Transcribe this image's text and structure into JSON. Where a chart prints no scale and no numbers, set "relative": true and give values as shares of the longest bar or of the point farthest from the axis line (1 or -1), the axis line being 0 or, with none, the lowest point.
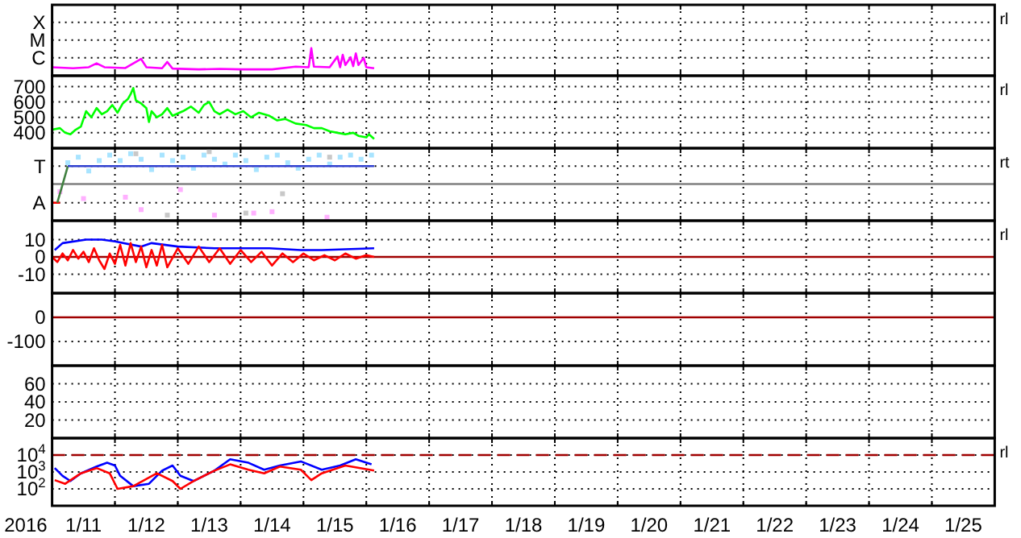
{
  "chart_data": [
    {
      "type": "line",
      "relative": true,
      "grid": "x",
      "tick_labels": false,
      "ref_lines": [
        {
          "axis": "y",
          "value": 0.65,
          "label": "C",
          "color": "#000000",
          "line_style": "dotted"
        },
        {
          "axis": "y",
          "value": 1.3,
          "label": "M",
          "color": "#000000",
          "line_style": "dotted"
        },
        {
          "axis": "y",
          "value": 1.94,
          "label": "X",
          "color": "#000000",
          "line_style": "dotted"
        }
      ],
      "xlim": [
        "2016-01-11",
        "2016-01-26"
      ],
      "xticks": [
        {
          "value": "2016-01-12",
          "label": null
        },
        {
          "value": "2016-01-13",
          "label": null
        },
        {
          "value": "2016-01-14",
          "label": null
        },
        {
          "value": "2016-01-15",
          "label": null
        },
        {
          "value": "2016-01-16",
          "label": null
        },
        {
          "value": "2016-01-17",
          "label": null
        },
        {
          "value": "2016-01-18",
          "label": null
        },
        {
          "value": "2016-01-19",
          "label": null
        },
        {
          "value": "2016-01-20",
          "label": null
        },
        {
          "value": "2016-01-21",
          "label": null
        },
        {
          "value": "2016-01-22",
          "label": null
        },
        {
          "value": "2016-01-23",
          "label": null
        },
        {
          "value": "2016-01-24",
          "label": null
        },
        {
          "value": "2016-01-25",
          "label": null
        }
      ],
      "annotations": [
        "rl"
      ],
      "series": [
        {
          "color": "#ff00ff",
          "x": [
            "2016-01-11T00:00",
            "2016-01-11T08:00",
            "2016-01-11T14:00",
            "2016-01-11T17:00",
            "2016-01-11T20:00",
            "2016-01-12T04:00",
            "2016-01-12T10:00",
            "2016-01-12T12:00",
            "2016-01-12T18:00",
            "2016-01-12T20:00",
            "2016-01-12T22:00",
            "2016-01-13T08:00",
            "2016-01-13T16:00",
            "2016-01-14T00:00",
            "2016-01-14T12:00",
            "2016-01-14T21:00",
            "2016-01-15T02:00",
            "2016-01-15T03:00",
            "2016-01-15T04:00",
            "2016-01-15T10:00",
            "2016-01-15T13:00",
            "2016-01-15T14:00",
            "2016-01-15T15:00",
            "2016-01-15T16:00",
            "2016-01-15T18:00",
            "2016-01-15T19:00",
            "2016-01-15T20:00",
            "2016-01-15T21:00",
            "2016-01-15T23:00",
            "2016-01-16T00:00",
            "2016-01-16T03:00"
          ],
          "values": [
            0.31,
            0.27,
            0.31,
            0.45,
            0.31,
            0.28,
            0.61,
            0.31,
            0.27,
            0.5,
            0.26,
            0.23,
            0.25,
            0.23,
            0.23,
            0.33,
            0.31,
            1,
            0.33,
            0.31,
            0.7,
            0.31,
            0.76,
            0.39,
            0.67,
            0.35,
            0.81,
            0.39,
            0.65,
            0.31,
            0.27
          ]
        }
      ]
    },
    {
      "type": "line",
      "grid": true,
      "tick_labels": "y",
      "ylim": [
        300,
        770
      ],
      "yticks": [
        400,
        500,
        600,
        700
      ],
      "xlim": [
        "2016-01-11",
        "2016-01-26"
      ],
      "xticks": [
        {
          "value": "2016-01-12",
          "label": null
        },
        {
          "value": "2016-01-13",
          "label": null
        },
        {
          "value": "2016-01-14",
          "label": null
        },
        {
          "value": "2016-01-15",
          "label": null
        },
        {
          "value": "2016-01-16",
          "label": null
        },
        {
          "value": "2016-01-17",
          "label": null
        },
        {
          "value": "2016-01-18",
          "label": null
        },
        {
          "value": "2016-01-19",
          "label": null
        },
        {
          "value": "2016-01-20",
          "label": null
        },
        {
          "value": "2016-01-21",
          "label": null
        },
        {
          "value": "2016-01-22",
          "label": null
        },
        {
          "value": "2016-01-23",
          "label": null
        },
        {
          "value": "2016-01-24",
          "label": null
        },
        {
          "value": "2016-01-25",
          "label": null
        }
      ],
      "annotations": [
        "rl"
      ],
      "series": [
        {
          "color": "#00ff00",
          "x": [
            "2016-01-11T00:00",
            "2016-01-11T03:00",
            "2016-01-11T05:00",
            "2016-01-11T07:00",
            "2016-01-11T09:00",
            "2016-01-11T11:00",
            "2016-01-11T13:00",
            "2016-01-11T15:00",
            "2016-01-11T17:00",
            "2016-01-11T19:00",
            "2016-01-11T21:00",
            "2016-01-11T23:00",
            "2016-01-12T01:00",
            "2016-01-12T03:00",
            "2016-01-12T05:00",
            "2016-01-12T06:00",
            "2016-01-12T07:00",
            "2016-01-12T08:00",
            "2016-01-12T10:00",
            "2016-01-12T12:00",
            "2016-01-12T13:00",
            "2016-01-12T14:00",
            "2016-01-12T16:00",
            "2016-01-12T18:00",
            "2016-01-12T20:00",
            "2016-01-12T22:00",
            "2016-01-13T02:00",
            "2016-01-13T05:00",
            "2016-01-13T08:00",
            "2016-01-13T10:00",
            "2016-01-13T12:00",
            "2016-01-13T14:00",
            "2016-01-13T16:00",
            "2016-01-13T19:00",
            "2016-01-13T22:00",
            "2016-01-14T01:00",
            "2016-01-14T04:00",
            "2016-01-14T07:00",
            "2016-01-14T11:00",
            "2016-01-14T14:00",
            "2016-01-14T17:00",
            "2016-01-14T21:00",
            "2016-01-15T01:00",
            "2016-01-15T04:00",
            "2016-01-15T07:00",
            "2016-01-15T10:00",
            "2016-01-15T13:00",
            "2016-01-15T16:00",
            "2016-01-15T19:00",
            "2016-01-15T21:00",
            "2016-01-16T00:00",
            "2016-01-16T01:00",
            "2016-01-16T03:00"
          ],
          "values": [
            420,
            430,
            400,
            390,
            420,
            440,
            540,
            500,
            560,
            520,
            540,
            580,
            530,
            590,
            620,
            650,
            690,
            610,
            590,
            560,
            470,
            540,
            500,
            520,
            560,
            510,
            540,
            570,
            530,
            580,
            600,
            540,
            520,
            550,
            520,
            540,
            500,
            530,
            510,
            480,
            490,
            460,
            450,
            430,
            430,
            410,
            400,
            390,
            400,
            380,
            370,
            390,
            360
          ]
        }
      ]
    },
    {
      "type": "line",
      "relative": true,
      "grid": "x",
      "tick_labels": false,
      "xlim": [
        "2016-01-11",
        "2016-01-26"
      ],
      "xticks": [
        {
          "value": "2016-01-12",
          "label": null
        },
        {
          "value": "2016-01-13",
          "label": null
        },
        {
          "value": "2016-01-14",
          "label": null
        },
        {
          "value": "2016-01-15",
          "label": null
        },
        {
          "value": "2016-01-16",
          "label": null
        },
        {
          "value": "2016-01-17",
          "label": null
        },
        {
          "value": "2016-01-18",
          "label": null
        },
        {
          "value": "2016-01-19",
          "label": null
        },
        {
          "value": "2016-01-20",
          "label": null
        },
        {
          "value": "2016-01-21",
          "label": null
        },
        {
          "value": "2016-01-22",
          "label": null
        },
        {
          "value": "2016-01-23",
          "label": null
        },
        {
          "value": "2016-01-24",
          "label": null
        },
        {
          "value": "2016-01-25",
          "label": null
        }
      ],
      "annotations": [
        "rt"
      ],
      "ref_lines": [
        {
          "axis": "y",
          "value": 0.53,
          "color": "#808080"
        },
        {
          "axis": "y",
          "value": 0.26,
          "label": "A",
          "color": "#000000",
          "line_style": "dotted"
        },
        {
          "axis": "y",
          "value": 0.79,
          "label": "T",
          "color": "#000000",
          "line_style": "dotted"
        }
      ],
      "series": [
        {
          "type": "scatter",
          "marker": "square",
          "color": "#c8c8c8",
          "x": [
            "2016-01-12T08:00",
            "2016-01-12T20:00",
            "2016-01-13T12:00",
            "2016-01-14T02:00",
            "2016-01-14T16:00",
            "2016-01-15T10:00"
          ],
          "values": [
            0.97,
            0.08,
            1,
            0.11,
            0.39,
            0.92
          ]
        },
        {
          "type": "scatter",
          "marker": "square",
          "color": "#ffb0ff",
          "x": [
            "2016-01-11T03:00",
            "2016-01-11T12:00",
            "2016-01-12T04:00",
            "2016-01-12T10:00",
            "2016-01-13T01:00",
            "2016-01-13T14:00",
            "2016-01-14T05:00",
            "2016-01-14T12:00",
            "2016-01-15T09:00"
          ],
          "values": [
            0.42,
            0.32,
            0.34,
            0.16,
            0.45,
            0.08,
            0.11,
            0.13,
            0.05
          ]
        },
        {
          "type": "scatter",
          "marker": "square",
          "color": "#a8e4ff",
          "x": [
            "2016-01-11T06:00",
            "2016-01-11T10:00",
            "2016-01-11T14:00",
            "2016-01-11T18:00",
            "2016-01-11T22:00",
            "2016-01-12T02:00",
            "2016-01-12T06:00",
            "2016-01-12T10:00",
            "2016-01-12T14:00",
            "2016-01-12T18:00",
            "2016-01-12T22:00",
            "2016-01-13T02:00",
            "2016-01-13T06:00",
            "2016-01-13T10:00",
            "2016-01-13T14:00",
            "2016-01-13T18:00",
            "2016-01-13T22:00",
            "2016-01-14T02:00",
            "2016-01-14T06:00",
            "2016-01-14T10:00",
            "2016-01-14T14:00",
            "2016-01-14T18:00",
            "2016-01-14T22:00",
            "2016-01-15T02:00",
            "2016-01-15T06:00",
            "2016-01-15T10:00",
            "2016-01-15T14:00",
            "2016-01-15T18:00",
            "2016-01-15T22:00",
            "2016-01-16T02:00"
          ],
          "values": [
            0.84,
            0.92,
            0.72,
            0.87,
            0.95,
            0.87,
            0.97,
            0.89,
            0.74,
            0.95,
            0.87,
            0.92,
            0.76,
            0.95,
            0.89,
            0.82,
            0.95,
            0.87,
            0.74,
            0.92,
            0.95,
            0.84,
            0.76,
            0.89,
            0.95,
            0.82,
            0.92,
            0.95,
            0.89,
            0.95
          ]
        },
        {
          "color": "#ff0000",
          "x": [
            "2016-01-11T00:00",
            "2016-01-11T03:00"
          ],
          "values": [
            0.26,
            0.26
          ]
        },
        {
          "color": "#408040",
          "x": [
            "2016-01-11T02:00",
            "2016-01-11T06:00"
          ],
          "values": [
            0.26,
            0.79
          ]
        },
        {
          "color": "#3040d0",
          "x": [
            "2016-01-11T06:00",
            "2016-01-16T03:00"
          ],
          "values": [
            0.79,
            0.79
          ]
        }
      ]
    },
    {
      "type": "line",
      "grid": true,
      "tick_labels": "y",
      "ylim": [
        -21,
        21
      ],
      "yticks": [
        -10,
        0,
        10
      ],
      "xlim": [
        "2016-01-11",
        "2016-01-26"
      ],
      "xticks": [
        {
          "value": "2016-01-12",
          "label": null
        },
        {
          "value": "2016-01-13",
          "label": null
        },
        {
          "value": "2016-01-14",
          "label": null
        },
        {
          "value": "2016-01-15",
          "label": null
        },
        {
          "value": "2016-01-16",
          "label": null
        },
        {
          "value": "2016-01-17",
          "label": null
        },
        {
          "value": "2016-01-18",
          "label": null
        },
        {
          "value": "2016-01-19",
          "label": null
        },
        {
          "value": "2016-01-20",
          "label": null
        },
        {
          "value": "2016-01-21",
          "label": null
        },
        {
          "value": "2016-01-22",
          "label": null
        },
        {
          "value": "2016-01-23",
          "label": null
        },
        {
          "value": "2016-01-24",
          "label": null
        },
        {
          "value": "2016-01-25",
          "label": null
        }
      ],
      "annotations": [
        "rl"
      ],
      "ref_lines": [
        {
          "axis": "y",
          "value": 0,
          "color": "#a00000"
        }
      ],
      "series": [
        {
          "color": "#0000ff",
          "x": [
            "2016-01-11T01:00",
            "2016-01-11T04:00",
            "2016-01-11T13:00",
            "2016-01-11T19:00",
            "2016-01-12T00:00",
            "2016-01-12T10:00",
            "2016-01-12T14:00",
            "2016-01-13T00:00",
            "2016-01-13T14:00",
            "2016-01-14T01:00",
            "2016-01-14T11:00",
            "2016-01-14T23:00",
            "2016-01-15T07:00",
            "2016-01-16T03:00"
          ],
          "values": [
            4,
            8,
            10,
            10,
            9,
            6,
            8,
            6,
            5,
            5,
            5,
            4,
            4,
            5
          ]
        },
        {
          "color": "#ff0000",
          "x": [
            "2016-01-11T00:00",
            "2016-01-11T02:00",
            "2016-01-11T04:00",
            "2016-01-11T06:00",
            "2016-01-11T08:00",
            "2016-01-11T10:00",
            "2016-01-11T12:00",
            "2016-01-11T14:00",
            "2016-01-11T16:00",
            "2016-01-11T18:00",
            "2016-01-11T20:00",
            "2016-01-11T22:00",
            "2016-01-12T00:00",
            "2016-01-12T02:00",
            "2016-01-12T04:00",
            "2016-01-12T06:00",
            "2016-01-12T08:00",
            "2016-01-12T10:00",
            "2016-01-12T12:00",
            "2016-01-12T14:00",
            "2016-01-12T16:00",
            "2016-01-12T18:00",
            "2016-01-12T20:00",
            "2016-01-13T00:00",
            "2016-01-13T04:00",
            "2016-01-13T08:00",
            "2016-01-13T12:00",
            "2016-01-13T16:00",
            "2016-01-13T20:00",
            "2016-01-14T00:00",
            "2016-01-14T04:00",
            "2016-01-14T08:00",
            "2016-01-14T12:00",
            "2016-01-14T16:00",
            "2016-01-14T20:00",
            "2016-01-15T00:00",
            "2016-01-15T04:00",
            "2016-01-15T08:00",
            "2016-01-15T12:00",
            "2016-01-15T16:00",
            "2016-01-15T20:00",
            "2016-01-16T00:00",
            "2016-01-16T03:00"
          ],
          "values": [
            0,
            -3,
            2,
            -2,
            4,
            -1,
            3,
            -3,
            5,
            -2,
            -7,
            2,
            -4,
            7,
            -5,
            8,
            -3,
            6,
            -6,
            4,
            -5,
            7,
            -6,
            5,
            -4,
            6,
            -3,
            5,
            -4,
            4,
            -3,
            3,
            -5,
            2,
            -3,
            2,
            -2,
            1,
            -2,
            2,
            -1,
            1,
            0
          ]
        }
      ]
    },
    {
      "type": "line",
      "grid": true,
      "tick_labels": "y",
      "ylim": [
        -200,
        100
      ],
      "yticks": [
        -100,
        0
      ],
      "xlim": [
        "2016-01-11",
        "2016-01-26"
      ],
      "xticks": [
        {
          "value": "2016-01-12",
          "label": null
        },
        {
          "value": "2016-01-13",
          "label": null
        },
        {
          "value": "2016-01-14",
          "label": null
        },
        {
          "value": "2016-01-15",
          "label": null
        },
        {
          "value": "2016-01-16",
          "label": null
        },
        {
          "value": "2016-01-17",
          "label": null
        },
        {
          "value": "2016-01-18",
          "label": null
        },
        {
          "value": "2016-01-19",
          "label": null
        },
        {
          "value": "2016-01-20",
          "label": null
        },
        {
          "value": "2016-01-21",
          "label": null
        },
        {
          "value": "2016-01-22",
          "label": null
        },
        {
          "value": "2016-01-23",
          "label": null
        },
        {
          "value": "2016-01-24",
          "label": null
        },
        {
          "value": "2016-01-25",
          "label": null
        }
      ],
      "ref_lines": [
        {
          "axis": "y",
          "value": 0,
          "color": "#a00000"
        }
      ]
    },
    {
      "type": "line",
      "grid": true,
      "tick_labels": "y",
      "ylim": [
        0,
        80
      ],
      "yticks": [
        20,
        40,
        60
      ],
      "xlim": [
        "2016-01-11",
        "2016-01-26"
      ],
      "xticks": [
        {
          "value": "2016-01-12",
          "label": null
        },
        {
          "value": "2016-01-13",
          "label": null
        },
        {
          "value": "2016-01-14",
          "label": null
        },
        {
          "value": "2016-01-15",
          "label": null
        },
        {
          "value": "2016-01-16",
          "label": null
        },
        {
          "value": "2016-01-17",
          "label": null
        },
        {
          "value": "2016-01-18",
          "label": null
        },
        {
          "value": "2016-01-19",
          "label": null
        },
        {
          "value": "2016-01-20",
          "label": null
        },
        {
          "value": "2016-01-21",
          "label": null
        },
        {
          "value": "2016-01-22",
          "label": null
        },
        {
          "value": "2016-01-23",
          "label": null
        },
        {
          "value": "2016-01-24",
          "label": null
        },
        {
          "value": "2016-01-25",
          "label": null
        }
      ]
    },
    {
      "type": "line",
      "log": true,
      "grid": true,
      "xlabel": "2016",
      "ylim": [
        10,
        100000
      ],
      "yticks": [
        {
          "value": 100,
          "label": "10$^{2}$"
        },
        {
          "value": 1000,
          "label": "10$^{3}$"
        },
        {
          "value": 10000,
          "label": "10$^{4}$"
        }
      ],
      "xlim": [
        "2016-01-11",
        "2016-01-26"
      ],
      "xticks": [
        {
          "value": "2016-01-11T12:00",
          "label": "1/11"
        },
        {
          "value": "2016-01-12",
          "label": null
        },
        {
          "value": "2016-01-12T12:00",
          "label": "1/12"
        },
        {
          "value": "2016-01-13",
          "label": null
        },
        {
          "value": "2016-01-13T12:00",
          "label": "1/13"
        },
        {
          "value": "2016-01-14",
          "label": null
        },
        {
          "value": "2016-01-14T12:00",
          "label": "1/14"
        },
        {
          "value": "2016-01-15",
          "label": null
        },
        {
          "value": "2016-01-15T12:00",
          "label": "1/15"
        },
        {
          "value": "2016-01-16",
          "label": null
        },
        {
          "value": "2016-01-16T12:00",
          "label": "1/16"
        },
        {
          "value": "2016-01-17",
          "label": null
        },
        {
          "value": "2016-01-17T12:00",
          "label": "1/17"
        },
        {
          "value": "2016-01-18",
          "label": null
        },
        {
          "value": "2016-01-18T12:00",
          "label": "1/18"
        },
        {
          "value": "2016-01-19",
          "label": null
        },
        {
          "value": "2016-01-19T12:00",
          "label": "1/19"
        },
        {
          "value": "2016-01-20",
          "label": null
        },
        {
          "value": "2016-01-20T12:00",
          "label": "1/20"
        },
        {
          "value": "2016-01-21",
          "label": null
        },
        {
          "value": "2016-01-21T12:00",
          "label": "1/21"
        },
        {
          "value": "2016-01-22",
          "label": null
        },
        {
          "value": "2016-01-22T12:00",
          "label": "1/22"
        },
        {
          "value": "2016-01-23",
          "label": null
        },
        {
          "value": "2016-01-23T12:00",
          "label": "1/23"
        },
        {
          "value": "2016-01-24",
          "label": null
        },
        {
          "value": "2016-01-24T12:00",
          "label": "1/24"
        },
        {
          "value": "2016-01-25",
          "label": null
        },
        {
          "value": "2016-01-25T12:00",
          "label": "1/25"
        }
      ],
      "annotations": [
        "rl"
      ],
      "ref_lines": [
        {
          "axis": "y",
          "value": 10000,
          "color": "#a00000",
          "line_style": "dashed"
        }
      ],
      "series": [
        {
          "color": "#0000ff",
          "x": [
            "2016-01-11T01:00",
            "2016-01-11T04:00",
            "2016-01-11T07:00",
            "2016-01-11T11:00",
            "2016-01-11T17:00",
            "2016-01-11T21:00",
            "2016-01-12T00:00",
            "2016-01-12T02:00",
            "2016-01-12T07:00",
            "2016-01-12T13:00",
            "2016-01-12T18:00",
            "2016-01-12T22:00",
            "2016-01-13T01:00",
            "2016-01-13T06:00",
            "2016-01-13T14:00",
            "2016-01-13T20:00",
            "2016-01-14T03:00",
            "2016-01-14T09:00",
            "2016-01-14T15:00",
            "2016-01-14T23:00",
            "2016-01-15T07:00",
            "2016-01-15T14:00",
            "2016-01-15T20:00",
            "2016-01-16T02:00"
          ],
          "values": [
            1700,
            590,
            290,
            830,
            2100,
            3500,
            2400,
            590,
            145,
            200,
            1200,
            2400,
            590,
            290,
            1200,
            5600,
            3500,
            1350,
            2400,
            4200,
            1350,
            2400,
            5600,
            2800
          ]
        },
        {
          "color": "#ff0000",
          "x": [
            "2016-01-11T01:00",
            "2016-01-11T05:00",
            "2016-01-11T11:00",
            "2016-01-11T17:00",
            "2016-01-11T22:00",
            "2016-01-12T01:00",
            "2016-01-12T07:00",
            "2016-01-12T16:00",
            "2016-01-12T22:00",
            "2016-01-13T01:00",
            "2016-01-13T06:00",
            "2016-01-13T14:00",
            "2016-01-13T20:00",
            "2016-01-14T03:00",
            "2016-01-14T09:00",
            "2016-01-14T15:00",
            "2016-01-14T23:00",
            "2016-01-15T03:00",
            "2016-01-15T07:00",
            "2016-01-15T16:00",
            "2016-01-16T03:00"
          ],
          "values": [
            330,
            200,
            830,
            1700,
            830,
            100,
            145,
            830,
            290,
            100,
            290,
            1200,
            2800,
            1350,
            830,
            2100,
            1350,
            330,
            830,
            2400,
            1200
          ]
        }
      ]
    }
  ]
}
